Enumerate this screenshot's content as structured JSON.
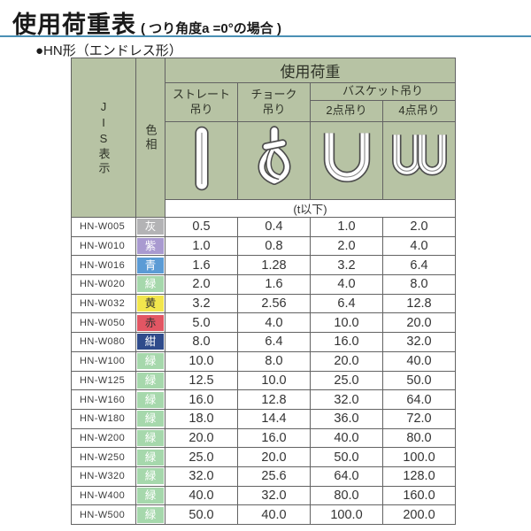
{
  "page": {
    "title": "使用荷重表",
    "title_note": "( つり角度a =0°の場合 )",
    "subtitle": "●HN形（エンドレス形）"
  },
  "colors": {
    "header_bg": "#b7c3a4",
    "rule_blue": "#4a90b5",
    "border": "#636363"
  },
  "table": {
    "header": {
      "jis": "JIS表示",
      "color": "色相",
      "load": "使用荷重",
      "straight": "ストレート\n吊り",
      "choker": "チョーク\n吊り",
      "basket": "バスケット吊り",
      "basket2": "2点吊り",
      "basket4": "4点吊り",
      "unit": "(t以下)"
    },
    "icons": [
      {
        "name": "straight-sling-icon"
      },
      {
        "name": "choker-sling-icon"
      },
      {
        "name": "basket-2point-sling-icon"
      },
      {
        "name": "basket-4point-sling-icon"
      }
    ],
    "rows": [
      {
        "jis": "HN-W005",
        "color": "灰",
        "swatch": "#b3b3b5",
        "text": "#ffffff",
        "values": [
          "0.5",
          "0.4",
          "1.0",
          "2.0"
        ]
      },
      {
        "jis": "HN-W010",
        "color": "紫",
        "swatch": "#a99ad0",
        "text": "#ffffff",
        "values": [
          "1.0",
          "0.8",
          "2.0",
          "4.0"
        ]
      },
      {
        "jis": "HN-W016",
        "color": "青",
        "swatch": "#5b9bd5",
        "text": "#ffffff",
        "values": [
          "1.6",
          "1.28",
          "3.2",
          "6.4"
        ]
      },
      {
        "jis": "HN-W020",
        "color": "緑",
        "swatch": "#a6d8ac",
        "text": "#ffffff",
        "values": [
          "2.0",
          "1.6",
          "4.0",
          "8.0"
        ]
      },
      {
        "jis": "HN-W032",
        "color": "黄",
        "swatch": "#f2e64d",
        "text": "#333333",
        "values": [
          "3.2",
          "2.56",
          "6.4",
          "12.8"
        ]
      },
      {
        "jis": "HN-W050",
        "color": "赤",
        "swatch": "#e25663",
        "text": "#333333",
        "values": [
          "5.0",
          "4.0",
          "10.0",
          "20.0"
        ]
      },
      {
        "jis": "HN-W080",
        "color": "紺",
        "swatch": "#2f4b8b",
        "text": "#ffffff",
        "values": [
          "8.0",
          "6.4",
          "16.0",
          "32.0"
        ]
      },
      {
        "jis": "HN-W100",
        "color": "緑",
        "swatch": "#a6d8ac",
        "text": "#ffffff",
        "values": [
          "10.0",
          "8.0",
          "20.0",
          "40.0"
        ]
      },
      {
        "jis": "HN-W125",
        "color": "緑",
        "swatch": "#a6d8ac",
        "text": "#ffffff",
        "values": [
          "12.5",
          "10.0",
          "25.0",
          "50.0"
        ]
      },
      {
        "jis": "HN-W160",
        "color": "緑",
        "swatch": "#a6d8ac",
        "text": "#ffffff",
        "values": [
          "16.0",
          "12.8",
          "32.0",
          "64.0"
        ]
      },
      {
        "jis": "HN-W180",
        "color": "緑",
        "swatch": "#a6d8ac",
        "text": "#ffffff",
        "values": [
          "18.0",
          "14.4",
          "36.0",
          "72.0"
        ]
      },
      {
        "jis": "HN-W200",
        "color": "緑",
        "swatch": "#a6d8ac",
        "text": "#ffffff",
        "values": [
          "20.0",
          "16.0",
          "40.0",
          "80.0"
        ]
      },
      {
        "jis": "HN-W250",
        "color": "緑",
        "swatch": "#a6d8ac",
        "text": "#ffffff",
        "values": [
          "25.0",
          "20.0",
          "50.0",
          "100.0"
        ]
      },
      {
        "jis": "HN-W320",
        "color": "緑",
        "swatch": "#a6d8ac",
        "text": "#ffffff",
        "values": [
          "32.0",
          "25.6",
          "64.0",
          "128.0"
        ]
      },
      {
        "jis": "HN-W400",
        "color": "緑",
        "swatch": "#a6d8ac",
        "text": "#ffffff",
        "values": [
          "40.0",
          "32.0",
          "80.0",
          "160.0"
        ]
      },
      {
        "jis": "HN-W500",
        "color": "緑",
        "swatch": "#a6d8ac",
        "text": "#ffffff",
        "values": [
          "50.0",
          "40.0",
          "100.0",
          "200.0"
        ]
      }
    ]
  }
}
